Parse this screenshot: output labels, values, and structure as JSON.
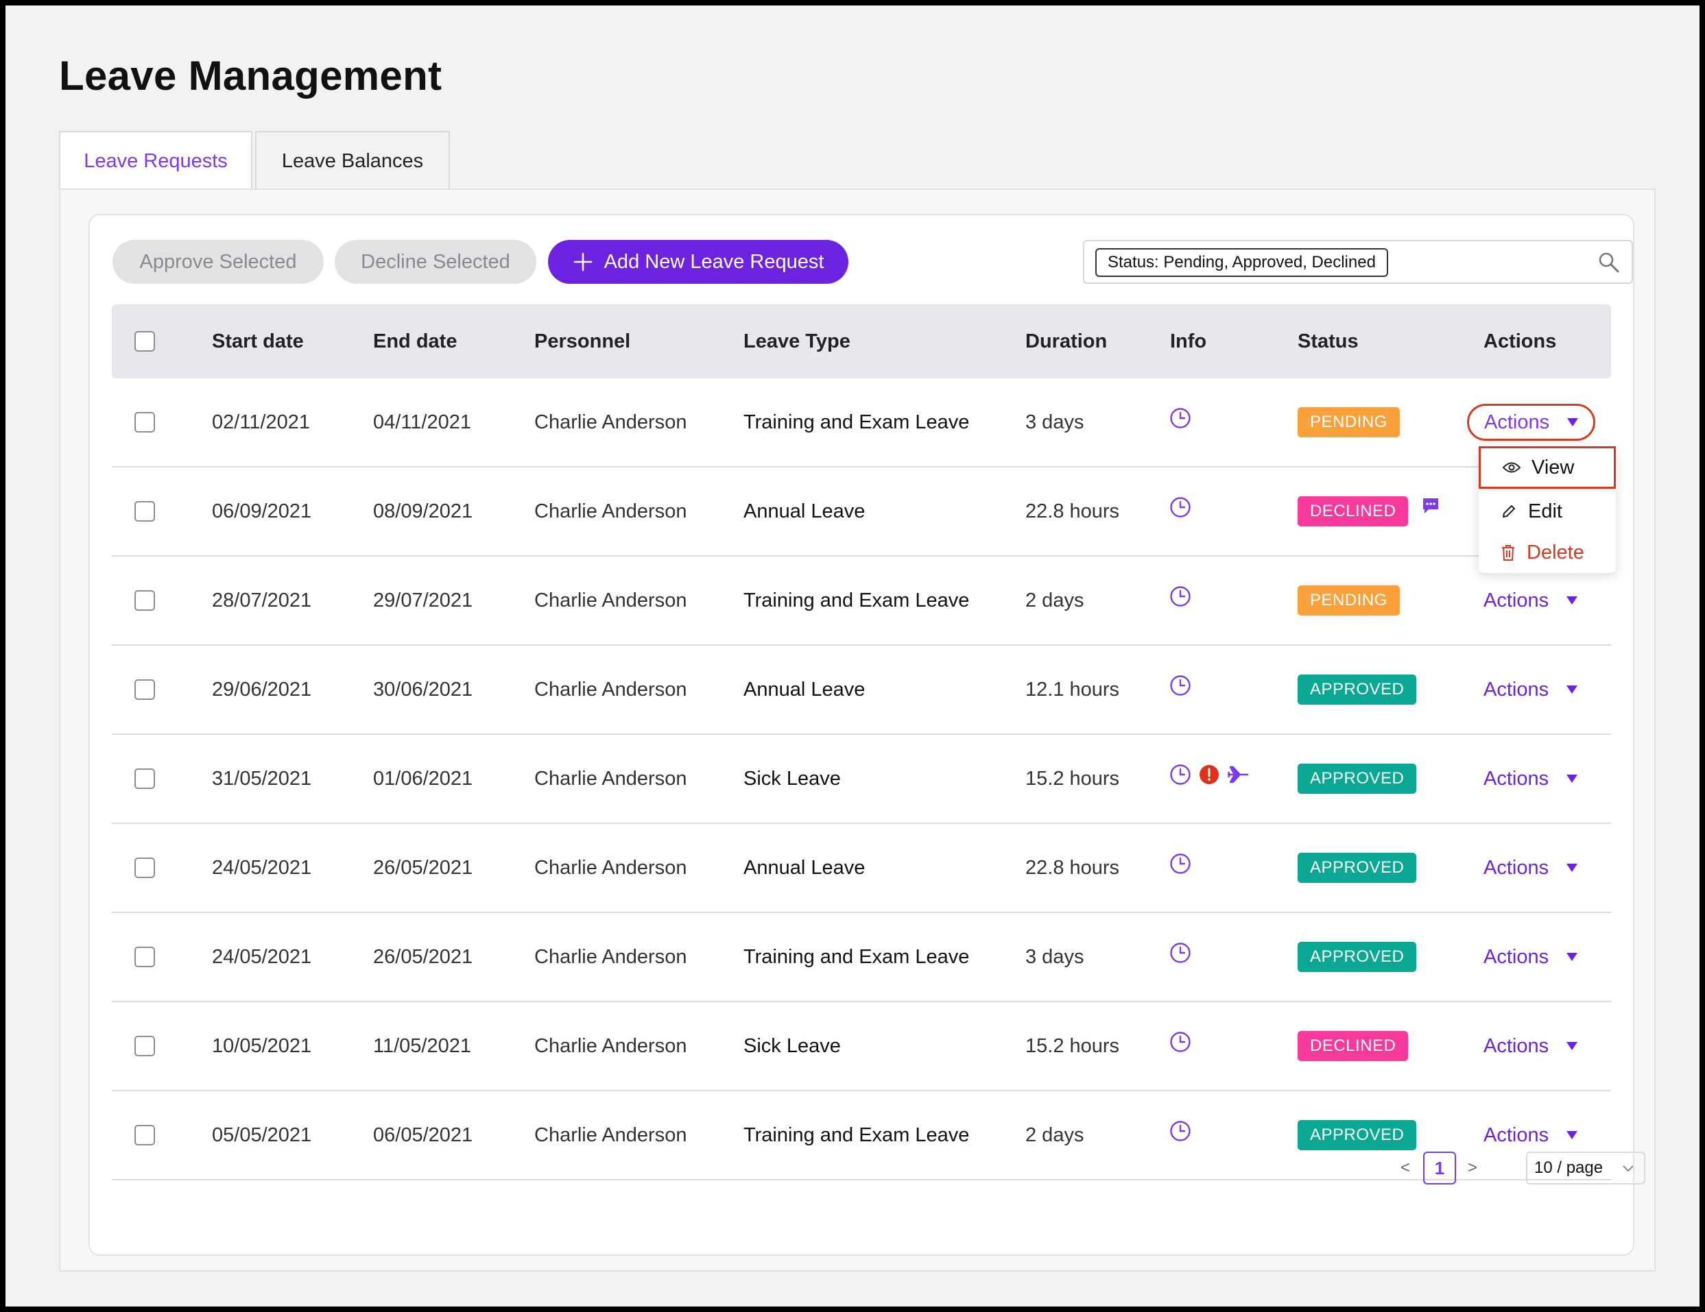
{
  "page": {
    "title": "Leave Management"
  },
  "tabs": [
    {
      "label": "Leave Requests",
      "active": true
    },
    {
      "label": "Leave Balances",
      "active": false
    }
  ],
  "toolbar": {
    "approve_label": "Approve Selected",
    "decline_label": "Decline Selected",
    "add_label": "Add New Leave Request",
    "filter_tag": "Status: Pending, Approved, Declined"
  },
  "table": {
    "columns": [
      "Start date",
      "End date",
      "Personnel",
      "Leave Type",
      "Duration",
      "Info",
      "Status",
      "Actions"
    ],
    "action_label": "Actions",
    "rows": [
      {
        "start": "02/11/2021",
        "end": "04/11/2021",
        "personnel": "Charlie Anderson",
        "type": "Training and Exam Leave",
        "duration": "3 days",
        "info": [
          "clock"
        ],
        "status": "PENDING",
        "status_kind": "pending"
      },
      {
        "start": "06/09/2021",
        "end": "08/09/2021",
        "personnel": "Charlie Anderson",
        "type": "Annual Leave",
        "duration": "22.8 hours",
        "info": [
          "clock"
        ],
        "status": "DECLINED",
        "status_kind": "declined",
        "comment": true
      },
      {
        "start": "28/07/2021",
        "end": "29/07/2021",
        "personnel": "Charlie Anderson",
        "type": "Training and Exam Leave",
        "duration": "2 days",
        "info": [
          "clock"
        ],
        "status": "PENDING",
        "status_kind": "pending"
      },
      {
        "start": "29/06/2021",
        "end": "30/06/2021",
        "personnel": "Charlie Anderson",
        "type": "Annual Leave",
        "duration": "12.1 hours",
        "info": [
          "clock"
        ],
        "status": "APPROVED",
        "status_kind": "approved"
      },
      {
        "start": "31/05/2021",
        "end": "01/06/2021",
        "personnel": "Charlie Anderson",
        "type": "Sick Leave",
        "duration": "15.2 hours",
        "info": [
          "clock",
          "alert",
          "plane"
        ],
        "status": "APPROVED",
        "status_kind": "approved"
      },
      {
        "start": "24/05/2021",
        "end": "26/05/2021",
        "personnel": "Charlie Anderson",
        "type": "Annual Leave",
        "duration": "22.8 hours",
        "info": [
          "clock"
        ],
        "status": "APPROVED",
        "status_kind": "approved"
      },
      {
        "start": "24/05/2021",
        "end": "26/05/2021",
        "personnel": "Charlie Anderson",
        "type": "Training and Exam Leave",
        "duration": "3 days",
        "info": [
          "clock"
        ],
        "status": "APPROVED",
        "status_kind": "approved"
      },
      {
        "start": "10/05/2021",
        "end": "11/05/2021",
        "personnel": "Charlie Anderson",
        "type": "Sick Leave",
        "duration": "15.2 hours",
        "info": [
          "clock"
        ],
        "status": "DECLINED",
        "status_kind": "declined"
      },
      {
        "start": "05/05/2021",
        "end": "06/05/2021",
        "personnel": "Charlie Anderson",
        "type": "Training and Exam Leave",
        "duration": "2 days",
        "info": [
          "clock"
        ],
        "status": "APPROVED",
        "status_kind": "approved"
      }
    ]
  },
  "dropdown": {
    "view": "View",
    "edit": "Edit",
    "delete": "Delete"
  },
  "pagination": {
    "prev": "<",
    "current": "1",
    "next": ">",
    "page_size": "10 / page"
  },
  "colors": {
    "accent": "#6d22e0",
    "pending": "#f9a23c",
    "declined": "#f6399a",
    "approved": "#0aa894",
    "highlight": "#d43a24"
  }
}
